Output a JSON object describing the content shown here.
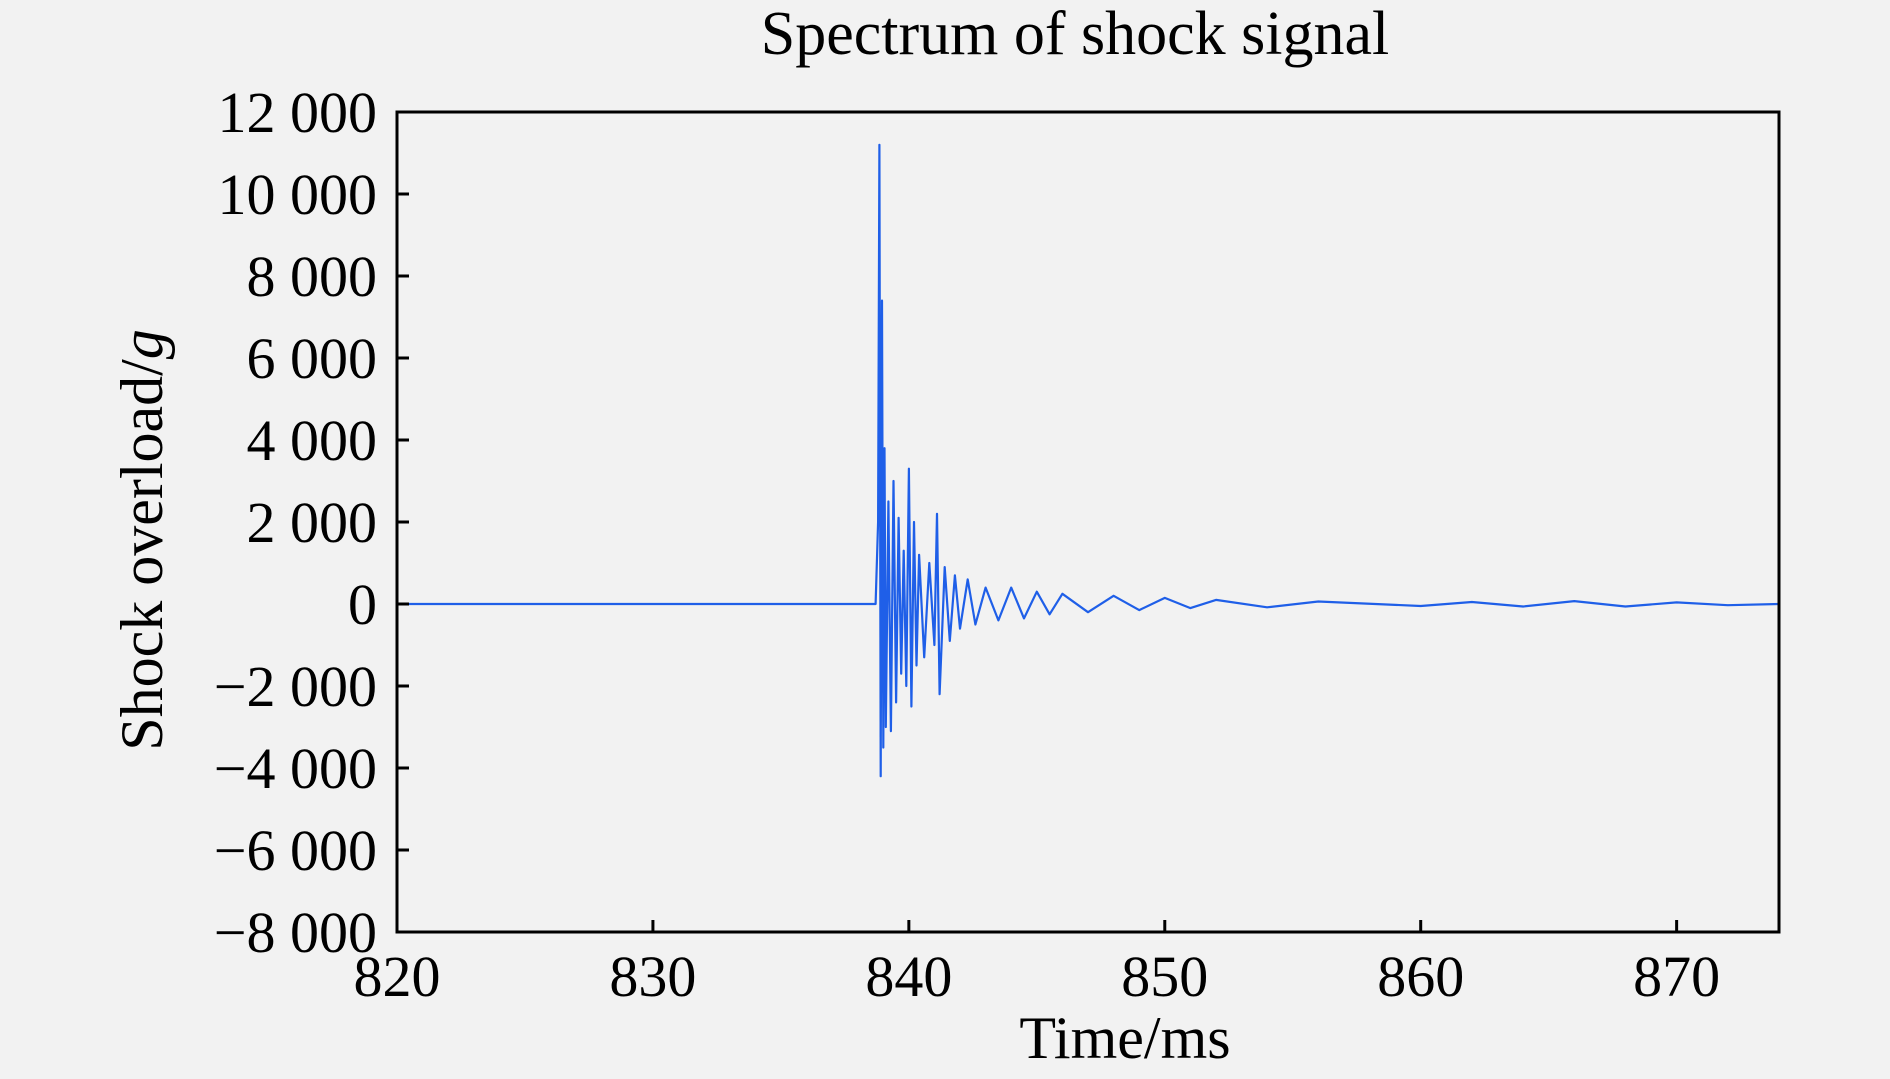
{
  "chart_data": {
    "type": "line",
    "title": "Spectrum of shock signal",
    "xlabel": "Time/ms",
    "ylabel_main": "Shock overload/",
    "ylabel_unit": "g",
    "xlim": [
      820,
      874
    ],
    "ylim": [
      -8000,
      12000
    ],
    "x_ticks": [
      820,
      830,
      840,
      850,
      860,
      870
    ],
    "x_tick_labels": [
      "820",
      "830",
      "840",
      "850",
      "860",
      "870"
    ],
    "y_ticks": [
      -8000,
      -6000,
      -4000,
      -2000,
      0,
      2000,
      4000,
      6000,
      8000,
      10000,
      12000
    ],
    "y_tick_labels": [
      "−8 000",
      "−6 000",
      "−4 000",
      "−2 000",
      "0",
      "2 000",
      "4 000",
      "6 000",
      "8 000",
      "10 000",
      "12 000"
    ],
    "grid": false,
    "line_color": "#1f5fe8",
    "series": [
      {
        "x": [
          820,
          838.7,
          838.8,
          838.85,
          838.9,
          838.95,
          839.0,
          839.05,
          839.1,
          839.2,
          839.3,
          839.4,
          839.5,
          839.6,
          839.7,
          839.8,
          839.9,
          840.0,
          840.1,
          840.2,
          840.3,
          840.4,
          840.6,
          840.8,
          841.0,
          841.1,
          841.2,
          841.4,
          841.6,
          841.8,
          842.0,
          842.3,
          842.6,
          843.0,
          843.5,
          844.0,
          844.5,
          845.0,
          845.5,
          846.0,
          847.0,
          848.0,
          849.0,
          850.0,
          851.0,
          852.0,
          854.0,
          856.0,
          860.0,
          862.0,
          864.0,
          866.0,
          868.0,
          870.0,
          872.0,
          874.0
        ],
        "y": [
          0,
          0,
          2000,
          11200,
          -4200,
          7400,
          -3500,
          3800,
          -3000,
          2500,
          -3100,
          3000,
          -2400,
          2100,
          -1700,
          1300,
          -2000,
          3300,
          -2500,
          2000,
          -1500,
          1200,
          -1300,
          1000,
          -1000,
          2200,
          -2200,
          900,
          -900,
          700,
          -600,
          600,
          -500,
          400,
          -400,
          400,
          -350,
          300,
          -250,
          250,
          -200,
          200,
          -150,
          150,
          -100,
          100,
          -80,
          60,
          -50,
          50,
          -60,
          70,
          -60,
          40,
          -30,
          0
        ]
      }
    ]
  }
}
